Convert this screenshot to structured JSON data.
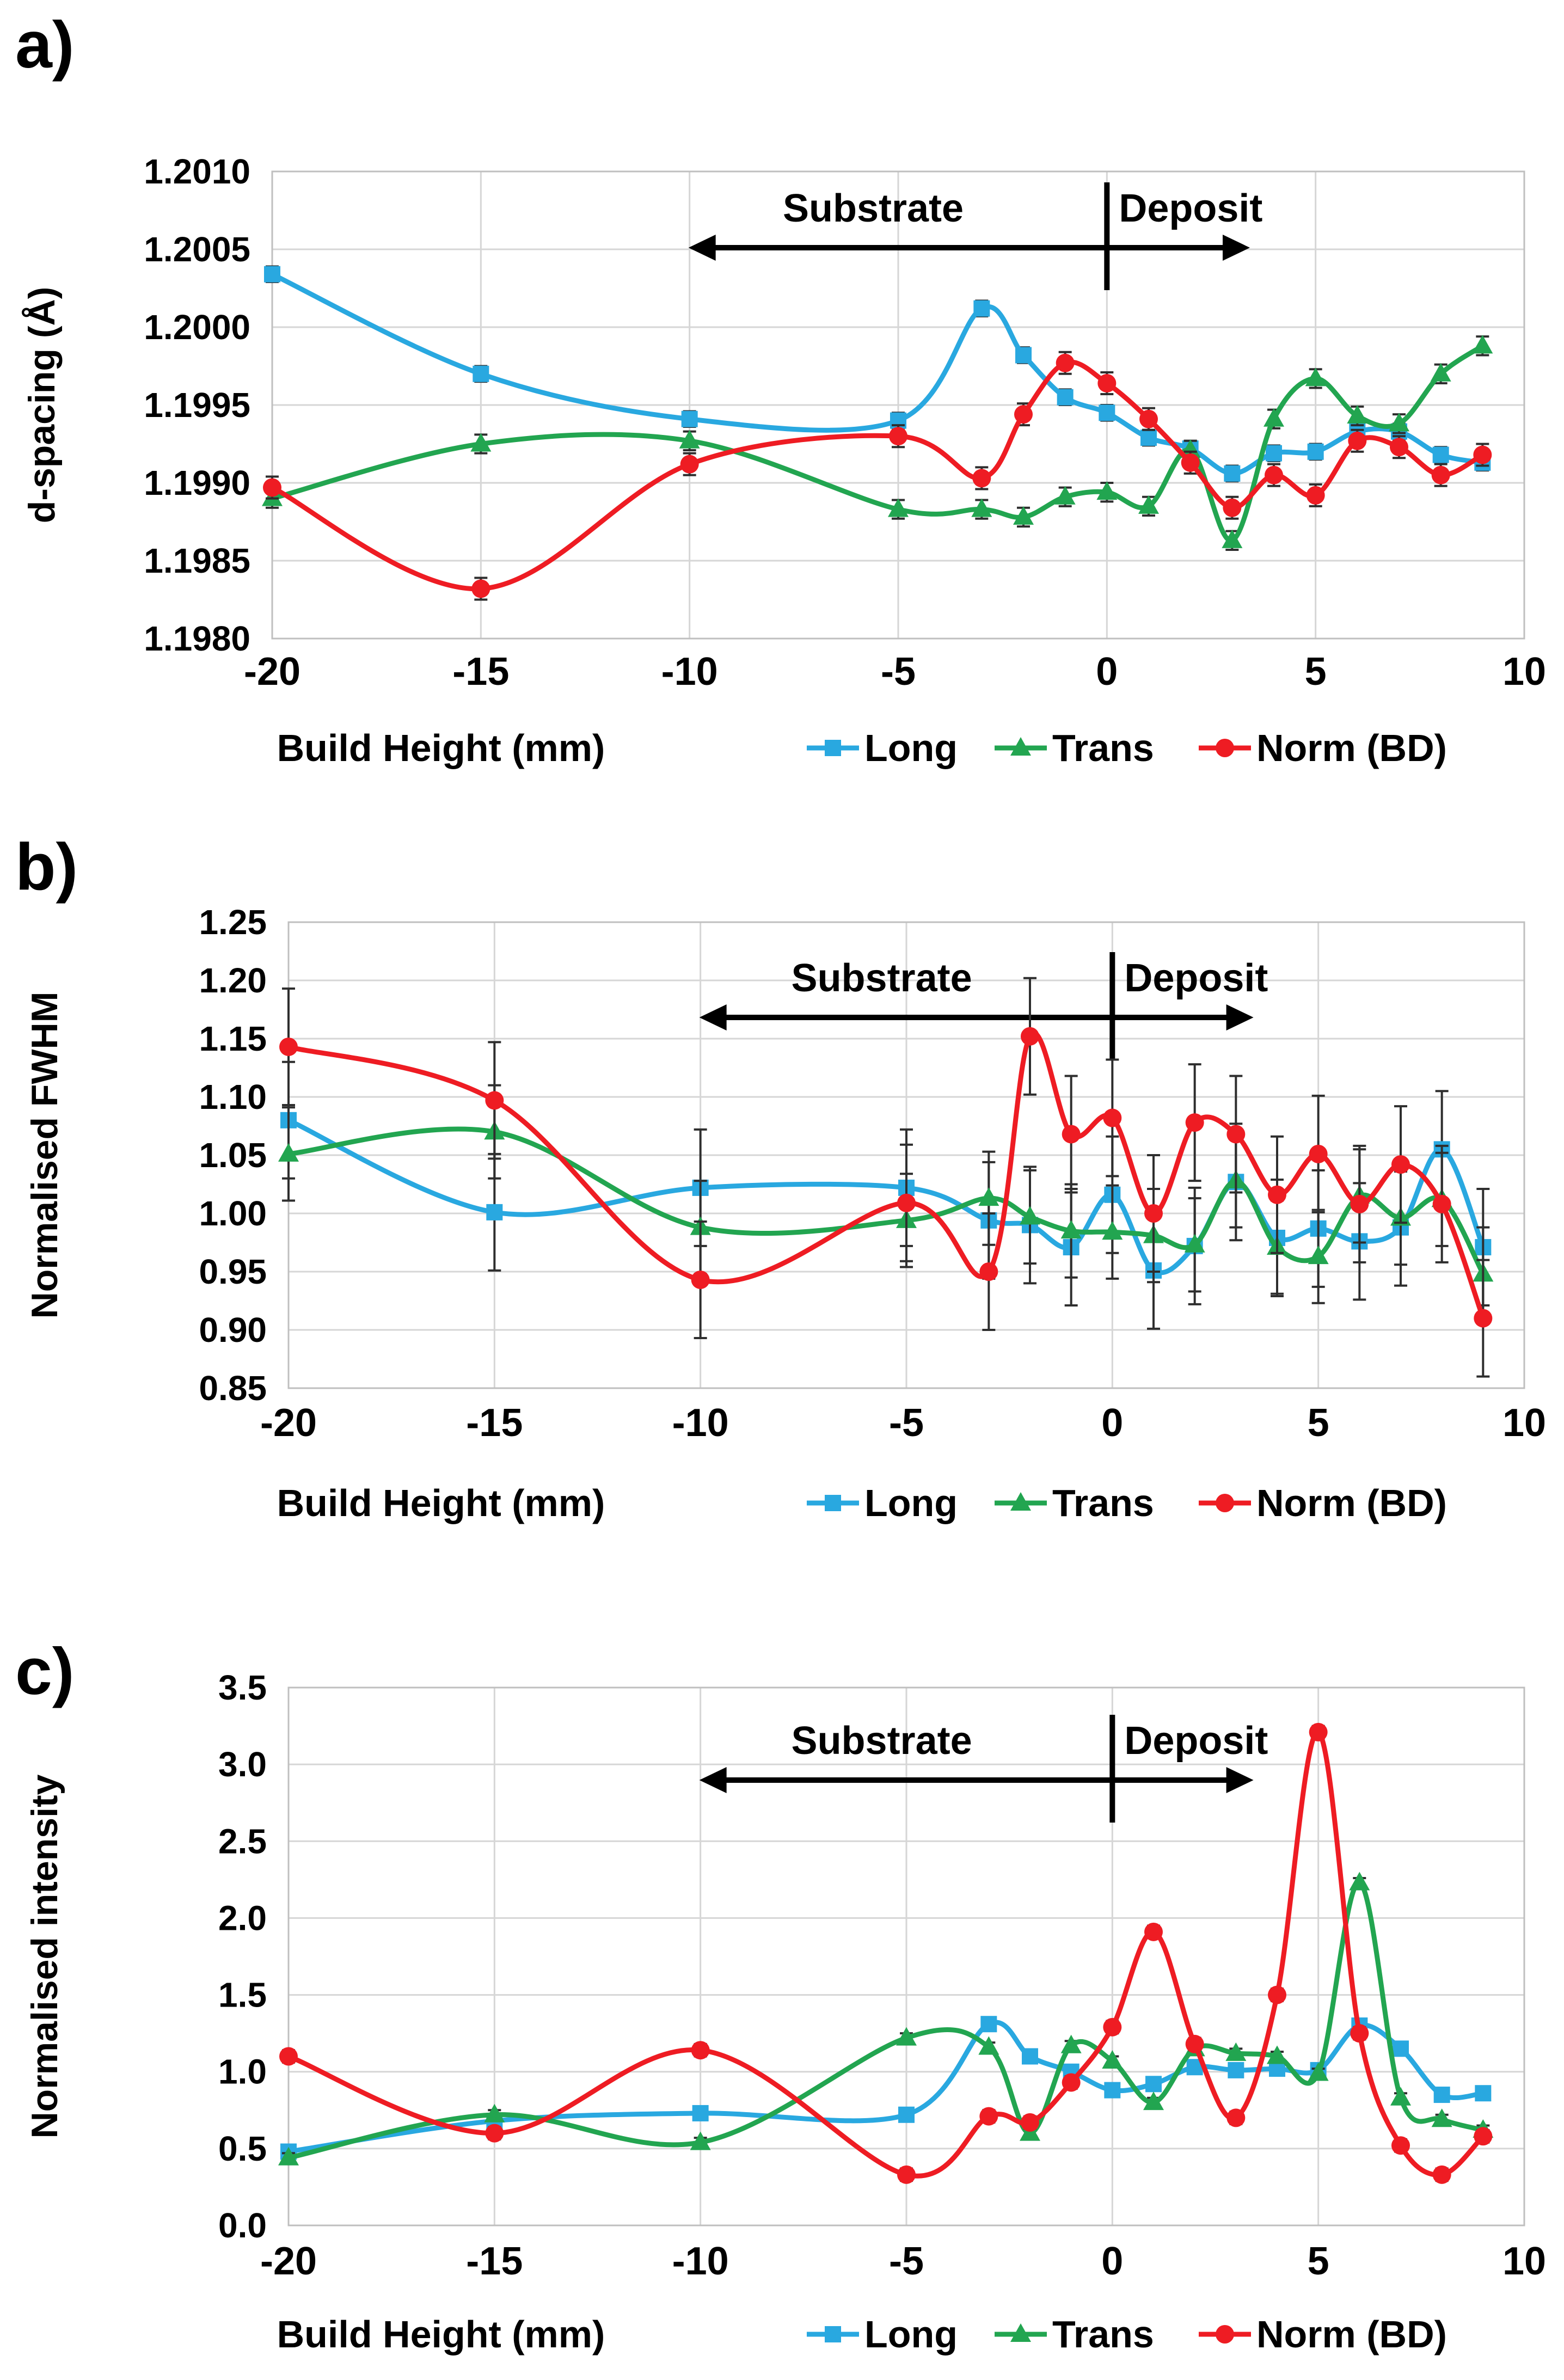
{
  "figure": {
    "background": "#ffffff",
    "text_color": "#000000",
    "grid_color": "#d6d6d6",
    "frame_color": "#bfbfbf",
    "error_bar_color": "#2e2e2e"
  },
  "chart_data": [
    {
      "id": "a",
      "panel_label": "a)",
      "type": "line",
      "title": "",
      "xlabel": "Build Height (mm)",
      "ylabel": "d-spacing (Å)",
      "xlim": [
        -20,
        10
      ],
      "ylim": [
        1.198,
        1.201
      ],
      "xticks": [
        -20,
        -15,
        -10,
        -5,
        0,
        5,
        10
      ],
      "xtick_labels": [
        "-20",
        "-15",
        "-10",
        "-5",
        "0",
        "5",
        "10"
      ],
      "yticks": [
        1.198,
        1.1985,
        1.199,
        1.1995,
        1.2,
        1.2005,
        1.201
      ],
      "ytick_labels": [
        "1.1980",
        "1.1985",
        "1.1990",
        "1.1995",
        "1.2000",
        "1.2005",
        "1.2010"
      ],
      "grid": true,
      "legend_position": "bottom",
      "x": [
        -20,
        -15,
        -10,
        -5,
        -3,
        -2,
        -1,
        0,
        1,
        2,
        3,
        4,
        5,
        6,
        7,
        8,
        9
      ],
      "series": [
        {
          "name": "Long",
          "marker": "square",
          "color": "#29A8E0",
          "values": [
            1.20034,
            1.1997,
            1.19941,
            1.1994,
            1.20012,
            1.19982,
            1.19955,
            1.19945,
            1.19929,
            1.19922,
            1.19906,
            1.19919,
            1.1992,
            1.19933,
            1.19933,
            1.19918,
            1.19913
          ],
          "error": 5e-05
        },
        {
          "name": "Trans",
          "marker": "triangle",
          "color": "#22A550",
          "values": [
            1.1989,
            1.19925,
            1.19927,
            1.19883,
            1.19883,
            1.19878,
            1.19891,
            1.19894,
            1.19885,
            1.19921,
            1.19863,
            1.19941,
            1.19967,
            1.19943,
            1.19938,
            1.1997,
            1.19988
          ],
          "error": 6e-05
        },
        {
          "name": "Norm (BD)",
          "marker": "circle",
          "color": "#EE1C23",
          "values": [
            1.19897,
            1.19832,
            1.19912,
            1.1993,
            1.19903,
            1.19944,
            1.19977,
            1.19964,
            1.19941,
            1.19913,
            1.19884,
            1.19905,
            1.19892,
            1.19927,
            1.19923,
            1.19905,
            1.19918
          ],
          "error": 7e-05
        }
      ],
      "annotation": {
        "substrate_label": "Substrate",
        "deposit_label": "Deposit",
        "arrow_x_start": -10,
        "arrow_x_end": 3.4,
        "divider_x": 0,
        "substrate_text_x": -5.6,
        "deposit_text_x": 0.25
      }
    },
    {
      "id": "b",
      "panel_label": "b)",
      "type": "line",
      "title": "",
      "xlabel": "Build Height (mm)",
      "ylabel": "Normalised FWHM",
      "xlim": [
        -20,
        10
      ],
      "ylim": [
        0.85,
        1.25
      ],
      "xticks": [
        -20,
        -15,
        -10,
        -5,
        0,
        5,
        10
      ],
      "xtick_labels": [
        "-20",
        "-15",
        "-10",
        "-5",
        "0",
        "5",
        "10"
      ],
      "yticks": [
        0.85,
        0.9,
        0.95,
        1.0,
        1.05,
        1.1,
        1.15,
        1.2,
        1.25
      ],
      "ytick_labels": [
        "0.85",
        "0.90",
        "0.95",
        "1.00",
        "1.05",
        "1.10",
        "1.15",
        "1.20",
        "1.25"
      ],
      "grid": true,
      "legend_position": "bottom",
      "x": [
        -20,
        -15,
        -10,
        -5,
        -3,
        -2,
        -1,
        0,
        1,
        2,
        3,
        4,
        5,
        6,
        7,
        8,
        9
      ],
      "series": [
        {
          "name": "Long",
          "marker": "square",
          "color": "#29A8E0",
          "values": [
            1.08,
            1.001,
            1.022,
            1.022,
            0.994,
            0.99,
            0.971,
            1.016,
            0.951,
            0.972,
            1.027,
            0.979,
            0.987,
            0.976,
            0.988,
            1.055,
            0.971
          ],
          "error": 0.05
        },
        {
          "name": "Trans",
          "marker": "triangle",
          "color": "#22A550",
          "values": [
            1.051,
            1.07,
            0.988,
            0.994,
            1.013,
            0.997,
            0.985,
            0.984,
            0.981,
            0.973,
            1.028,
            0.971,
            0.963,
            1.015,
            0.996,
            1.012,
            0.948
          ],
          "error": 0.04
        },
        {
          "name": "Norm (BD)",
          "marker": "circle",
          "color": "#EE1C23",
          "values": [
            1.143,
            1.097,
            0.943,
            1.009,
            0.95,
            1.152,
            1.068,
            1.082,
            1.0,
            1.078,
            1.068,
            1.016,
            1.051,
            1.008,
            1.042,
            1.008,
            0.91
          ],
          "error": 0.05
        }
      ],
      "annotation": {
        "substrate_label": "Substrate",
        "deposit_label": "Deposit",
        "arrow_x_start": -10,
        "arrow_x_end": 3.4,
        "divider_x": 0,
        "substrate_text_x": -5.6,
        "deposit_text_x": 0.25
      }
    },
    {
      "id": "c",
      "panel_label": "c)",
      "type": "line",
      "title": "",
      "xlabel": "Build Height (mm)",
      "ylabel": "Normalised intensity",
      "xlim": [
        -20,
        10
      ],
      "ylim": [
        0.0,
        3.5
      ],
      "xticks": [
        -20,
        -15,
        -10,
        -5,
        0,
        5,
        10
      ],
      "xtick_labels": [
        "-20",
        "-15",
        "-10",
        "-5",
        "0",
        "5",
        "10"
      ],
      "yticks": [
        0.0,
        0.5,
        1.0,
        1.5,
        2.0,
        2.5,
        3.0,
        3.5
      ],
      "ytick_labels": [
        "0.0",
        "0.5",
        "1.0",
        "1.5",
        "2.0",
        "2.5",
        "3.0",
        "3.5"
      ],
      "grid": true,
      "legend_position": "bottom",
      "x": [
        -20,
        -15,
        -10,
        -5,
        -3,
        -2,
        -1,
        0,
        1,
        2,
        3,
        4,
        5,
        6,
        7,
        8,
        9
      ],
      "series": [
        {
          "name": "Long",
          "marker": "square",
          "color": "#29A8E0",
          "values": [
            0.48,
            0.68,
            0.73,
            0.72,
            1.31,
            1.1,
            1.0,
            0.88,
            0.92,
            1.03,
            1.01,
            1.02,
            1.01,
            1.3,
            1.15,
            0.85,
            0.86
          ],
          "error": 0.02
        },
        {
          "name": "Trans",
          "marker": "triangle",
          "color": "#22A550",
          "values": [
            0.44,
            0.72,
            0.54,
            1.22,
            1.16,
            0.6,
            1.17,
            1.07,
            0.8,
            1.15,
            1.12,
            1.1,
            0.99,
            2.23,
            0.83,
            0.69,
            0.62
          ],
          "error": 0.03
        },
        {
          "name": "Norm (BD)",
          "marker": "circle",
          "color": "#EE1C23",
          "values": [
            1.1,
            0.6,
            1.14,
            0.33,
            0.71,
            0.67,
            0.93,
            1.29,
            1.91,
            1.18,
            0.7,
            1.5,
            3.21,
            1.25,
            0.52,
            0.33,
            0.58
          ],
          "error": 0.04
        }
      ],
      "annotation": {
        "substrate_label": "Substrate",
        "deposit_label": "Deposit",
        "arrow_x_start": -10,
        "arrow_x_end": 3.4,
        "divider_x": 0,
        "substrate_text_x": -5.6,
        "deposit_text_x": 0.25
      }
    }
  ]
}
